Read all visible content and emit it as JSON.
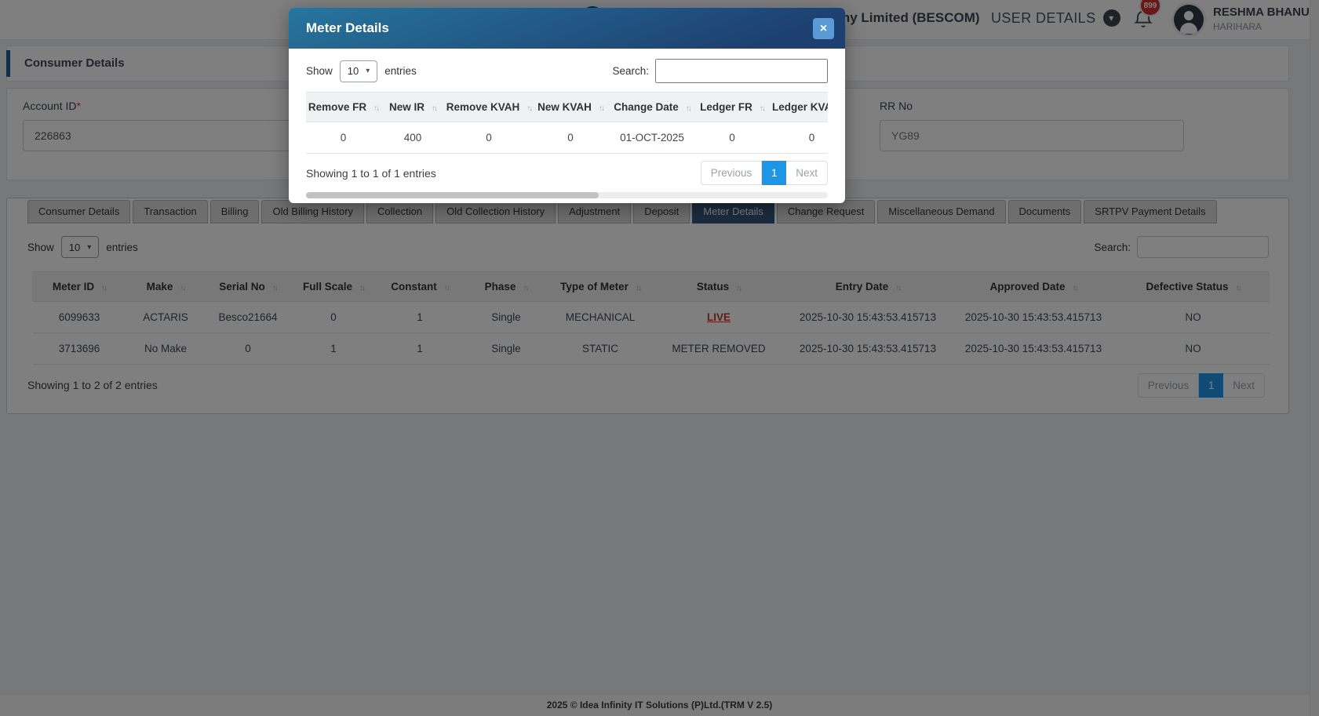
{
  "header": {
    "org_title": "Bangalore Electricity Supply Company Limited (BESCOM)",
    "user_menu_label": "USER DETAILS",
    "notification_badge": "899",
    "user_name": "RESHMA BHANU",
    "user_location": "HARIHARA"
  },
  "page": {
    "section_title": "Consumer Details",
    "fields": {
      "account_id": {
        "label": "Account ID",
        "required_mark": "*",
        "value": "226863"
      },
      "rr_no": {
        "label": "RR No",
        "value": "YG89"
      }
    },
    "tabs": [
      "Consumer Details",
      "Transaction",
      "Billing",
      "Old Billing History",
      "Collection",
      "Old Collection History",
      "Adjustment",
      "Deposit",
      "Meter Details",
      "Change Request",
      "Miscellaneous Demand",
      "Documents",
      "SRTPV Payment Details"
    ],
    "active_tab": "Meter Details",
    "table": {
      "show_label": "Show",
      "page_size": "10",
      "entries_label": "entries",
      "search_label": "Search:",
      "columns": [
        "Meter ID",
        "Make",
        "Serial No",
        "Full Scale",
        "Constant",
        "Phase",
        "Type of Meter",
        "Status",
        "Entry Date",
        "Approved Date",
        "Defective Status"
      ],
      "rows": [
        [
          "6099633",
          "ACTARIS",
          "Besco21664",
          "0",
          "1",
          "Single",
          "MECHANICAL",
          "LIVE",
          "2025-10-30 15:43:53.415713",
          "2025-10-30 15:43:53.415713",
          "NO"
        ],
        [
          "3713696",
          "No Make",
          "0",
          "1",
          "1",
          "Single",
          "STATIC",
          "METER REMOVED",
          "2025-10-30 15:43:53.415713",
          "2025-10-30 15:43:53.415713",
          "NO"
        ]
      ],
      "summary": "Showing 1 to 2 of 2 entries",
      "pagination": {
        "previous": "Previous",
        "page": "1",
        "next": "Next"
      }
    }
  },
  "modal": {
    "title": "Meter Details",
    "close_icon": "×",
    "show_label": "Show",
    "page_size": "10",
    "entries_label": "entries",
    "search_label": "Search:",
    "columns": [
      "Remove FR",
      "New IR",
      "Remove KVAH",
      "New KVAH",
      "Change Date",
      "Ledger FR",
      "Ledger KVAH"
    ],
    "rows": [
      [
        "0",
        "400",
        "0",
        "0",
        "01-OCT-2025",
        "0",
        "0"
      ]
    ],
    "summary": "Showing 1 to 1 of 1 entries",
    "pagination": {
      "previous": "Previous",
      "page": "1",
      "next": "Next"
    }
  },
  "footer": {
    "copyright": "2025 © Idea Infinity IT Solutions (P)Ltd.(TRM V 2.5)"
  },
  "colors": {
    "accent_blue": "#1e96e8",
    "active_tab": "#36597c",
    "modal_header_from": "#27759d",
    "modal_header_to": "#1d4071",
    "live_status_red": "#c0392b",
    "badge_red": "#d32f2f",
    "close_button_blue": "#5b9bd5"
  }
}
